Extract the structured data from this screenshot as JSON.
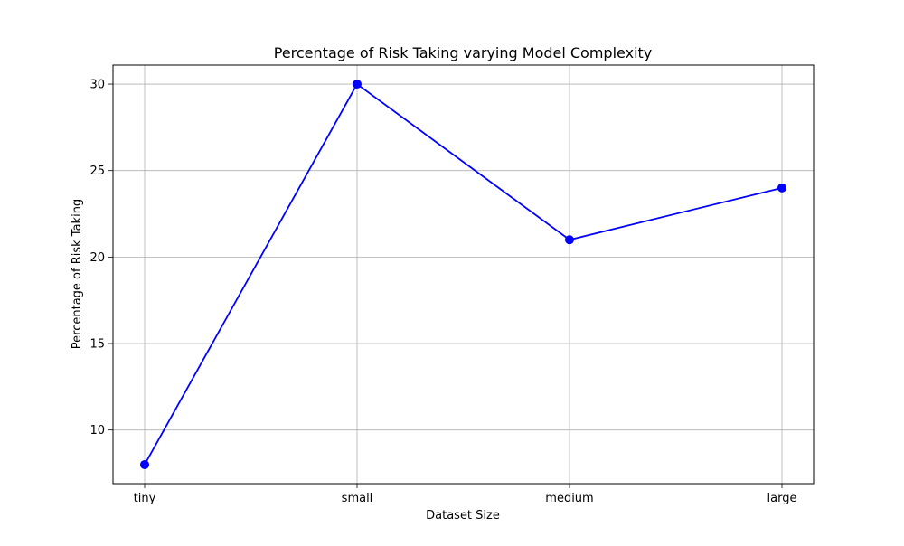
{
  "chart_data": {
    "type": "line",
    "title": "Percentage of Risk Taking varying Model Complexity",
    "xlabel": "Dataset Size",
    "ylabel": "Percentage of Risk Taking",
    "categories": [
      "tiny",
      "small",
      "medium",
      "large"
    ],
    "series": [
      {
        "values": [
          8,
          30,
          21,
          24
        ],
        "color": "#0000ff",
        "marker": "circle"
      }
    ],
    "ylim": [
      6.9,
      31.1
    ],
    "yticks": [
      10,
      15,
      20,
      25,
      30
    ],
    "grid": true,
    "legend": "none"
  }
}
